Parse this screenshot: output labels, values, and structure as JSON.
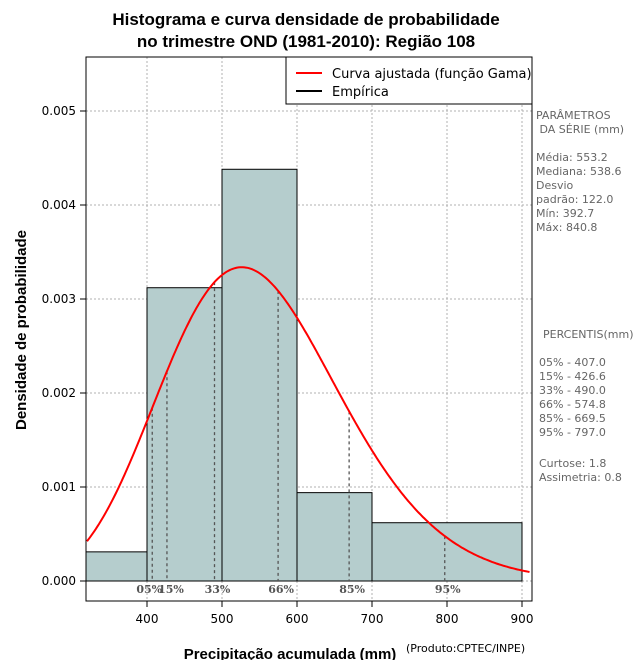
{
  "chart_data": {
    "type": "bar",
    "title_line1": "Histograma e curva densidade de probabilidade",
    "title_line2": "no trimestre OND (1981-2010): Região 108",
    "xlabel": "Precipitação acumulada (mm)",
    "ylabel": "Densidade de probabilidade",
    "credit": "(Produto:CPTEC/INPE)",
    "xlim": [
      320,
      910
    ],
    "ylim": [
      0,
      0.00555
    ],
    "x_ticks": [
      {
        "value": 400,
        "label": "400"
      },
      {
        "value": 500,
        "label": "500"
      },
      {
        "value": 600,
        "label": "600"
      },
      {
        "value": 700,
        "label": "700"
      },
      {
        "value": 800,
        "label": "800"
      },
      {
        "value": 900,
        "label": "900"
      }
    ],
    "y_ticks": [
      {
        "value": 0,
        "label": "0.000"
      },
      {
        "value": 0.001,
        "label": "0.001"
      },
      {
        "value": 0.002,
        "label": "0.002"
      },
      {
        "value": 0.003,
        "label": "0.003"
      },
      {
        "value": 0.004,
        "label": "0.004"
      },
      {
        "value": 0.005,
        "label": "0.005"
      }
    ],
    "grid": true,
    "bins": [
      {
        "from": 300,
        "to": 400,
        "density": 0.00031
      },
      {
        "from": 400,
        "to": 500,
        "density": 0.00312
      },
      {
        "from": 500,
        "to": 600,
        "density": 0.00438
      },
      {
        "from": 600,
        "to": 700,
        "density": 0.00094
      },
      {
        "from": 700,
        "to": 900,
        "density": 0.00062
      }
    ],
    "bar_color": "#b5cdcd",
    "curve": {
      "name": "Curva ajustada (função Gama)",
      "color": "#ff0000",
      "mean": 553.2,
      "sd": 122.0
    },
    "legend": {
      "position": "top-right",
      "entries": [
        {
          "label": "Curva ajustada (função Gama)",
          "color": "#ff0000"
        },
        {
          "label": "Empírica",
          "color": "#000000"
        }
      ]
    },
    "percentiles": [
      {
        "label": "05%",
        "value": 407.0
      },
      {
        "label": "15%",
        "value": 426.6
      },
      {
        "label": "33%",
        "value": 490.0
      },
      {
        "label": "66%",
        "value": 574.8
      },
      {
        "label": "85%",
        "value": 669.5
      },
      {
        "label": "95%",
        "value": 797.0
      }
    ]
  },
  "side_panel": {
    "params_title_1": "PARÂMETROS",
    "params_title_2": " DA SÉRIE (mm)",
    "media": "Média:  553.2",
    "mediana": "Mediana:  538.6",
    "desvio": "Desvio",
    "padrao": "padrão:  122.0",
    "min": "Mín:  392.7",
    "max": "Máx:  840.8",
    "percentis_title": "PERCENTIS(mm)",
    "p05": "05% -  407.0",
    "p15": "15% -  426.6",
    "p33": "33% -  490.0",
    "p66": "66% -  574.8",
    "p85": "85% -  669.5",
    "p95": "95% -  797.0",
    "curtose": "Curtose:  1.8",
    "assimetria": "Assimetria:  0.8"
  }
}
